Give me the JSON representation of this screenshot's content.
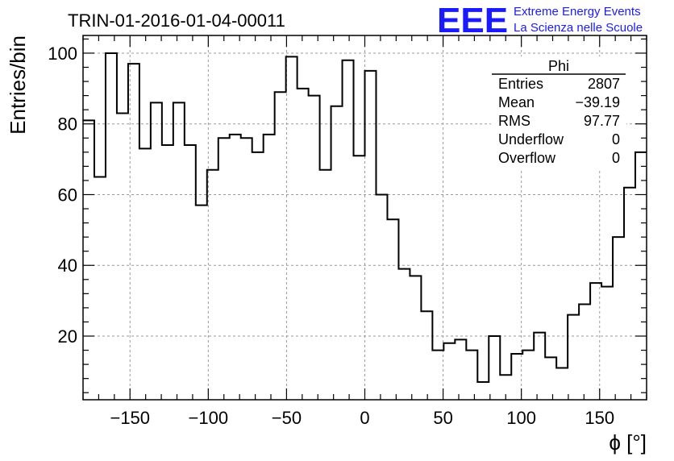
{
  "header": {
    "run_title": "TRIN-01-2016-01-04-00011",
    "logo_letters": "EEE",
    "logo_line1": "Extreme Energy Events",
    "logo_line2": "La Scienza nelle Scuole",
    "logo_color": "#1a1aff"
  },
  "stats": {
    "title": "Phi",
    "rows": [
      {
        "label": "Entries",
        "value": "2807"
      },
      {
        "label": "Mean",
        "value": "−39.19"
      },
      {
        "label": "RMS",
        "value": "97.77"
      },
      {
        "label": "Underflow",
        "value": "0"
      },
      {
        "label": "Overflow",
        "value": "0"
      }
    ]
  },
  "chart_data": {
    "type": "histogram",
    "xlabel": "ϕ [°]",
    "ylabel": "Entries/bin",
    "xlim": [
      -180,
      180
    ],
    "ylim": [
      2,
      105
    ],
    "bin_width": 7.2,
    "x_ticks": [
      -150,
      -100,
      -50,
      0,
      50,
      100,
      150
    ],
    "x_tick_labels": [
      "−150",
      "−100",
      "−50",
      "0",
      "50",
      "100",
      "150"
    ],
    "y_ticks": [
      20,
      40,
      60,
      80,
      100
    ],
    "y_tick_labels": [
      "20",
      "40",
      "60",
      "80",
      "100"
    ],
    "grid": true,
    "line_color": "#000000",
    "values": [
      81,
      65,
      100,
      83,
      97,
      73,
      86,
      74,
      86,
      74,
      57,
      67,
      76,
      77,
      76,
      72,
      77,
      89,
      99,
      90,
      88,
      67,
      85,
      98,
      71,
      95,
      60,
      53,
      39,
      37,
      27,
      16,
      18,
      19,
      16,
      7,
      20,
      9,
      15,
      16,
      21,
      14,
      11,
      26,
      29,
      35,
      34,
      48,
      62,
      72
    ]
  }
}
